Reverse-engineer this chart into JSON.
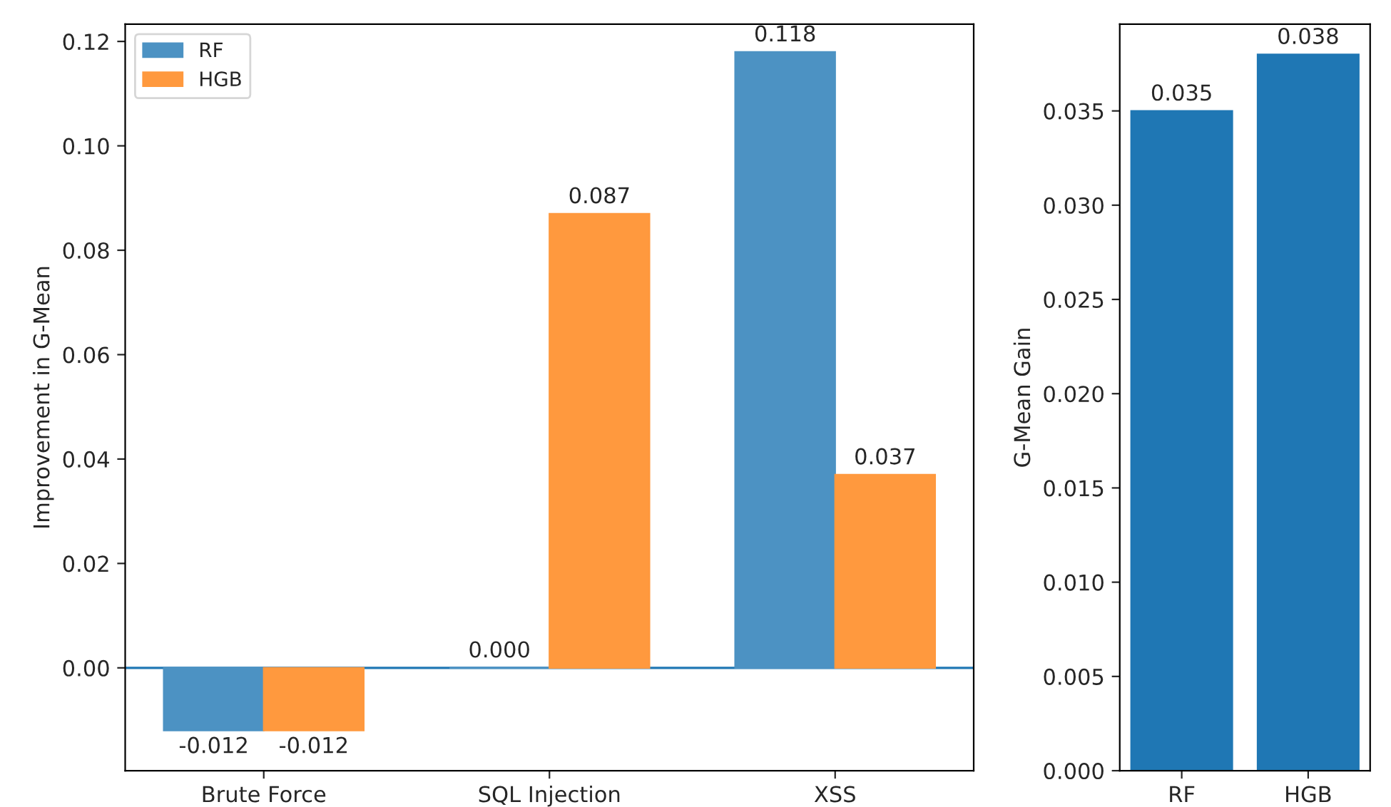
{
  "chart_data": [
    {
      "type": "bar",
      "ylabel": "Improvement in G-Mean",
      "categories": [
        "Brute Force",
        "SQL Injection",
        "XSS"
      ],
      "series": [
        {
          "name": "RF",
          "color": "#4c92c3",
          "values": [
            -0.012,
            0.0,
            0.118
          ]
        },
        {
          "name": "HGB",
          "color": "#ff993e",
          "values": [
            -0.012,
            0.087,
            0.037
          ]
        }
      ],
      "ylim": [
        -0.0197,
        0.1233
      ],
      "yticks": [
        {
          "value": 0,
          "label": "0.00"
        },
        {
          "value": 0.02,
          "label": "0.02"
        },
        {
          "value": 0.04,
          "label": "0.04"
        },
        {
          "value": 0.06,
          "label": "0.06"
        },
        {
          "value": 0.08,
          "label": "0.08"
        },
        {
          "value": 0.1,
          "label": "0.10"
        },
        {
          "value": 0.12,
          "label": "0.12"
        }
      ],
      "value_labels": [
        [
          "-0.012",
          "0.000",
          "0.118"
        ],
        [
          "-0.012",
          "0.087",
          "0.037"
        ]
      ],
      "ref_lines": [
        {
          "axis": "y",
          "value": 0,
          "color": "#1f77b4"
        }
      ],
      "legend": "top left",
      "grid": false
    },
    {
      "type": "bar",
      "ylabel": "G-Mean Gain",
      "categories": [
        "RF",
        "HGB"
      ],
      "values": [
        0.035,
        0.038
      ],
      "color": "#1f77b4",
      "ylim": [
        0,
        0.0396
      ],
      "yticks": [
        {
          "value": 0,
          "label": "0.000"
        },
        {
          "value": 0.005,
          "label": "0.005"
        },
        {
          "value": 0.01,
          "label": "0.010"
        },
        {
          "value": 0.015,
          "label": "0.015"
        },
        {
          "value": 0.02,
          "label": "0.020"
        },
        {
          "value": 0.025,
          "label": "0.025"
        },
        {
          "value": 0.03,
          "label": "0.030"
        },
        {
          "value": 0.035,
          "label": "0.035"
        }
      ],
      "data_labels": true,
      "grid": false
    }
  ]
}
